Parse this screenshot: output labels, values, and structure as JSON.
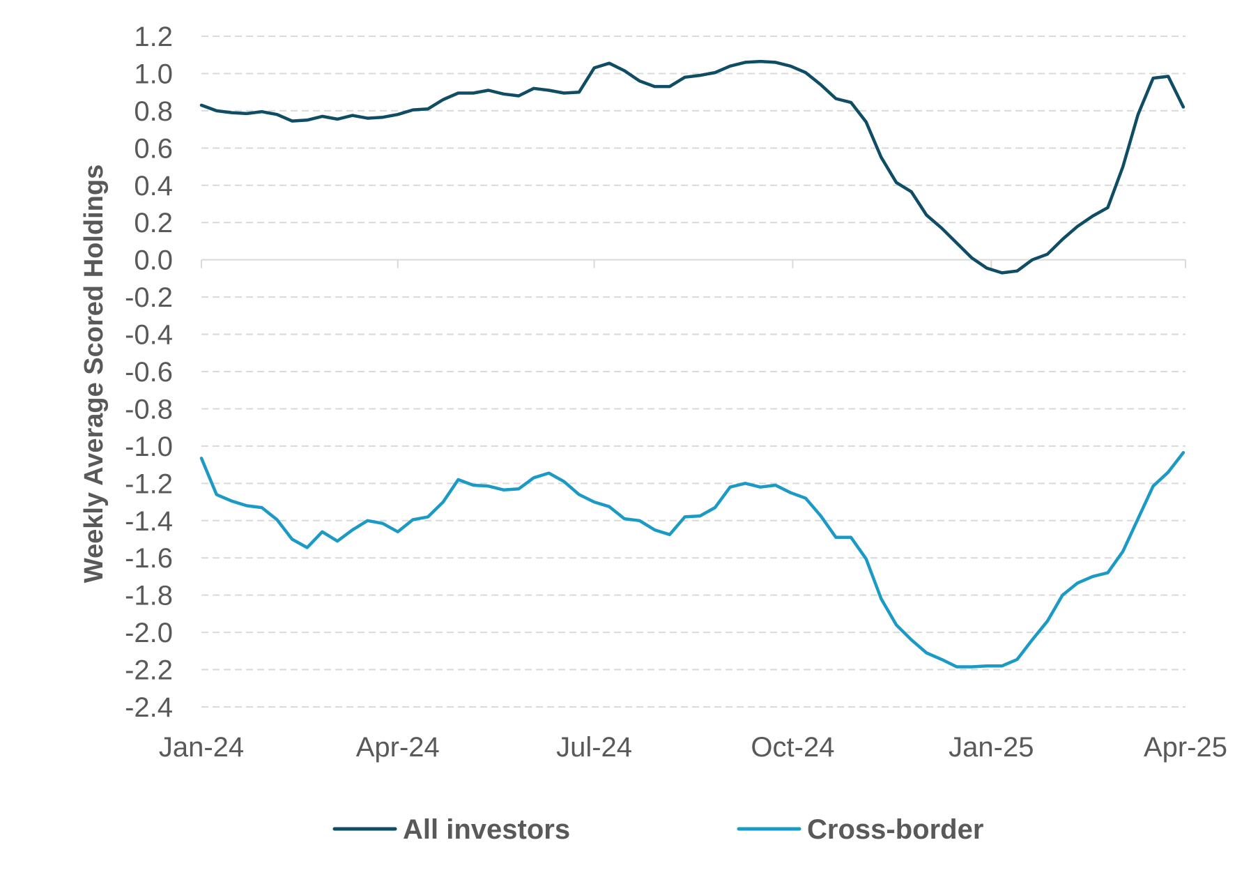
{
  "chart_data": {
    "type": "line",
    "title": "",
    "xlabel": "",
    "ylabel": "Weekly Average Scored Holdings",
    "ylim": [
      -2.4,
      1.2
    ],
    "y_ticks": [
      "1.2",
      "1.0",
      "0.8",
      "0.6",
      "0.4",
      "0.2",
      "0.0",
      "-0.2",
      "-0.4",
      "-0.6",
      "-0.8",
      "-1.0",
      "-1.2",
      "-1.4",
      "-1.6",
      "-1.8",
      "-2.0",
      "-2.2",
      "-2.4"
    ],
    "x_range": [
      "2024-01-01",
      "2025-04-01"
    ],
    "x_ticks": [
      {
        "date": "2024-01-01",
        "label": "Jan-24"
      },
      {
        "date": "2024-04-01",
        "label": "Apr-24"
      },
      {
        "date": "2024-07-01",
        "label": "Jul-24"
      },
      {
        "date": "2024-10-01",
        "label": "Oct-24"
      },
      {
        "date": "2025-01-01",
        "label": "Jan-25"
      },
      {
        "date": "2025-04-01",
        "label": "Apr-25"
      }
    ],
    "grid": "horizontal dashed",
    "legend_position": "bottom",
    "series": [
      {
        "name": "All investors",
        "color": "#0E4D64",
        "points": [
          [
            "2024-01-01",
            0.83
          ],
          [
            "2024-01-08",
            0.8
          ],
          [
            "2024-01-15",
            0.79
          ],
          [
            "2024-01-22",
            0.785
          ],
          [
            "2024-01-29",
            0.795
          ],
          [
            "2024-02-05",
            0.78
          ],
          [
            "2024-02-12",
            0.745
          ],
          [
            "2024-02-19",
            0.75
          ],
          [
            "2024-02-26",
            0.77
          ],
          [
            "2024-03-04",
            0.755
          ],
          [
            "2024-03-11",
            0.775
          ],
          [
            "2024-03-18",
            0.76
          ],
          [
            "2024-03-25",
            0.765
          ],
          [
            "2024-04-01",
            0.78
          ],
          [
            "2024-04-08",
            0.805
          ],
          [
            "2024-04-15",
            0.81
          ],
          [
            "2024-04-22",
            0.86
          ],
          [
            "2024-04-29",
            0.895
          ],
          [
            "2024-05-06",
            0.895
          ],
          [
            "2024-05-13",
            0.91
          ],
          [
            "2024-05-20",
            0.89
          ],
          [
            "2024-05-27",
            0.88
          ],
          [
            "2024-06-03",
            0.92
          ],
          [
            "2024-06-10",
            0.91
          ],
          [
            "2024-06-17",
            0.895
          ],
          [
            "2024-06-24",
            0.9
          ],
          [
            "2024-07-01",
            1.03
          ],
          [
            "2024-07-08",
            1.055
          ],
          [
            "2024-07-15",
            1.015
          ],
          [
            "2024-07-22",
            0.96
          ],
          [
            "2024-07-29",
            0.93
          ],
          [
            "2024-08-05",
            0.93
          ],
          [
            "2024-08-12",
            0.98
          ],
          [
            "2024-08-19",
            0.99
          ],
          [
            "2024-08-26",
            1.005
          ],
          [
            "2024-09-02",
            1.04
          ],
          [
            "2024-09-09",
            1.06
          ],
          [
            "2024-09-16",
            1.065
          ],
          [
            "2024-09-23",
            1.06
          ],
          [
            "2024-09-30",
            1.04
          ],
          [
            "2024-10-07",
            1.005
          ],
          [
            "2024-10-14",
            0.94
          ],
          [
            "2024-10-21",
            0.865
          ],
          [
            "2024-10-28",
            0.845
          ],
          [
            "2024-11-04",
            0.74
          ],
          [
            "2024-11-11",
            0.55
          ],
          [
            "2024-11-18",
            0.415
          ],
          [
            "2024-11-25",
            0.365
          ],
          [
            "2024-12-02",
            0.24
          ],
          [
            "2024-12-09",
            0.17
          ],
          [
            "2024-12-16",
            0.09
          ],
          [
            "2024-12-23",
            0.01
          ],
          [
            "2024-12-30",
            -0.045
          ],
          [
            "2025-01-06",
            -0.07
          ],
          [
            "2025-01-13",
            -0.06
          ],
          [
            "2025-01-20",
            0.0
          ],
          [
            "2025-01-27",
            0.03
          ],
          [
            "2025-02-03",
            0.11
          ],
          [
            "2025-02-10",
            0.18
          ],
          [
            "2025-02-17",
            0.235
          ],
          [
            "2025-02-24",
            0.28
          ],
          [
            "2025-03-03",
            0.5
          ],
          [
            "2025-03-10",
            0.78
          ],
          [
            "2025-03-17",
            0.975
          ],
          [
            "2025-03-24",
            0.985
          ],
          [
            "2025-03-31",
            0.82
          ]
        ]
      },
      {
        "name": "Cross-border",
        "color": "#1B9AC6",
        "points": [
          [
            "2024-01-01",
            -1.065
          ],
          [
            "2024-01-08",
            -1.26
          ],
          [
            "2024-01-15",
            -1.295
          ],
          [
            "2024-01-22",
            -1.32
          ],
          [
            "2024-01-29",
            -1.33
          ],
          [
            "2024-02-05",
            -1.395
          ],
          [
            "2024-02-12",
            -1.5
          ],
          [
            "2024-02-19",
            -1.545
          ],
          [
            "2024-02-26",
            -1.46
          ],
          [
            "2024-03-04",
            -1.51
          ],
          [
            "2024-03-11",
            -1.45
          ],
          [
            "2024-03-18",
            -1.4
          ],
          [
            "2024-03-25",
            -1.415
          ],
          [
            "2024-04-01",
            -1.46
          ],
          [
            "2024-04-08",
            -1.395
          ],
          [
            "2024-04-15",
            -1.38
          ],
          [
            "2024-04-22",
            -1.3
          ],
          [
            "2024-04-29",
            -1.18
          ],
          [
            "2024-05-06",
            -1.21
          ],
          [
            "2024-05-13",
            -1.215
          ],
          [
            "2024-05-20",
            -1.235
          ],
          [
            "2024-05-27",
            -1.23
          ],
          [
            "2024-06-03",
            -1.17
          ],
          [
            "2024-06-10",
            -1.145
          ],
          [
            "2024-06-17",
            -1.19
          ],
          [
            "2024-06-24",
            -1.26
          ],
          [
            "2024-07-01",
            -1.3
          ],
          [
            "2024-07-08",
            -1.325
          ],
          [
            "2024-07-15",
            -1.39
          ],
          [
            "2024-07-22",
            -1.4
          ],
          [
            "2024-07-29",
            -1.45
          ],
          [
            "2024-08-05",
            -1.475
          ],
          [
            "2024-08-12",
            -1.38
          ],
          [
            "2024-08-19",
            -1.375
          ],
          [
            "2024-08-26",
            -1.33
          ],
          [
            "2024-09-02",
            -1.22
          ],
          [
            "2024-09-09",
            -1.2
          ],
          [
            "2024-09-16",
            -1.22
          ],
          [
            "2024-09-23",
            -1.21
          ],
          [
            "2024-09-30",
            -1.25
          ],
          [
            "2024-10-07",
            -1.28
          ],
          [
            "2024-10-14",
            -1.375
          ],
          [
            "2024-10-21",
            -1.49
          ],
          [
            "2024-10-28",
            -1.49
          ],
          [
            "2024-11-04",
            -1.605
          ],
          [
            "2024-11-11",
            -1.82
          ],
          [
            "2024-11-18",
            -1.96
          ],
          [
            "2024-11-25",
            -2.04
          ],
          [
            "2024-12-02",
            -2.11
          ],
          [
            "2024-12-09",
            -2.145
          ],
          [
            "2024-12-16",
            -2.185
          ],
          [
            "2024-12-23",
            -2.185
          ],
          [
            "2024-12-30",
            -2.18
          ],
          [
            "2025-01-06",
            -2.18
          ],
          [
            "2025-01-13",
            -2.145
          ],
          [
            "2025-01-20",
            -2.04
          ],
          [
            "2025-01-27",
            -1.94
          ],
          [
            "2025-02-03",
            -1.8
          ],
          [
            "2025-02-10",
            -1.735
          ],
          [
            "2025-02-17",
            -1.7
          ],
          [
            "2025-02-24",
            -1.68
          ],
          [
            "2025-03-03",
            -1.565
          ],
          [
            "2025-03-10",
            -1.39
          ],
          [
            "2025-03-17",
            -1.215
          ],
          [
            "2025-03-24",
            -1.14
          ],
          [
            "2025-03-31",
            -1.035
          ]
        ]
      }
    ]
  }
}
